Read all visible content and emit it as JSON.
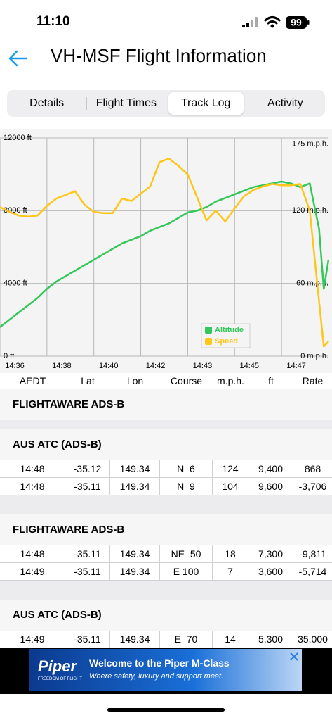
{
  "status_bar": {
    "time": "11:10",
    "battery": "99"
  },
  "header": {
    "title": "VH-MSF Flight Information"
  },
  "tabs": [
    "Details",
    "Flight Times",
    "Track Log",
    "Activity"
  ],
  "selected_tab": 2,
  "chart_data": {
    "type": "line",
    "x": [
      0,
      2,
      4,
      6,
      8,
      10,
      12,
      14,
      16,
      18,
      20,
      22,
      24,
      26,
      28,
      30,
      32,
      34,
      36,
      38,
      40,
      42,
      44,
      46,
      48,
      50,
      52,
      54,
      56,
      58,
      60,
      62,
      64,
      66,
      68,
      69,
      70
    ],
    "xlim": [
      0,
      70
    ],
    "xticks": [
      {
        "value": 0,
        "label": "14:36"
      },
      {
        "value": 10,
        "label": "14:38"
      },
      {
        "value": 20,
        "label": "14:40"
      },
      {
        "value": 30,
        "label": "14:42"
      },
      {
        "value": 40,
        "label": "14:43"
      },
      {
        "value": 50,
        "label": "14:45"
      },
      {
        "value": 60,
        "label": "14:47"
      }
    ],
    "ylim": [
      0,
      12000
    ],
    "yticks": [
      {
        "value": 0,
        "label": "0 ft"
      },
      {
        "value": 4000,
        "label": "4000 ft"
      },
      {
        "value": 8000,
        "label": "8000 ft"
      },
      {
        "value": 12000,
        "label": "12000 ft"
      }
    ],
    "y2lim": [
      0,
      180
    ],
    "y2ticks": [
      {
        "value": 0,
        "label": "0 m.p.h."
      },
      {
        "value": 60,
        "label": "60 m.p.h."
      },
      {
        "value": 120,
        "label": "120 m.p.h."
      },
      {
        "value": 175,
        "label": "175 m.p.h."
      }
    ],
    "grid": true,
    "legend": "bottom-right",
    "series": [
      {
        "name": "Altitude",
        "color": "#34c759",
        "values": [
          1600,
          2000,
          2400,
          2800,
          3200,
          3700,
          4100,
          4400,
          4700,
          5000,
          5300,
          5600,
          5900,
          6200,
          6400,
          6600,
          6900,
          7100,
          7300,
          7600,
          7900,
          8000,
          8200,
          8500,
          8700,
          8900,
          9100,
          9300,
          9400,
          9500,
          9600,
          9500,
          9300,
          9500,
          7000,
          3700,
          5300
        ]
      },
      {
        "name": "Speed",
        "color": "#ffc61a",
        "axis": "y2",
        "values": [
          123,
          119,
          116,
          115,
          116,
          124,
          130,
          133,
          136,
          125,
          119,
          118,
          118,
          130,
          128,
          134,
          140,
          160,
          163,
          157,
          150,
          131,
          112,
          120,
          111,
          122,
          132,
          137,
          140,
          142,
          141,
          141,
          142,
          120,
          45,
          8,
          12
        ]
      }
    ]
  },
  "table": {
    "columns": [
      "AEDT",
      "Lat",
      "Lon",
      "Course",
      "m.p.h.",
      "ft",
      "Rate"
    ],
    "sections": [
      {
        "title": "FLIGHTAWARE ADS-B",
        "rows": []
      },
      {
        "title": "AUS ATC (ADS-B)",
        "rows": [
          [
            "14:48",
            "-35.12",
            "149.34",
            "N  6",
            "124",
            "9,400",
            "868"
          ],
          [
            "14:48",
            "-35.11",
            "149.34",
            "N  9",
            "104",
            "9,600",
            "-3,706"
          ]
        ]
      },
      {
        "title": "FLIGHTAWARE ADS-B",
        "rows": [
          [
            "14:48",
            "-35.11",
            "149.34",
            "NE  50",
            "18",
            "7,300",
            "-9,811"
          ],
          [
            "14:49",
            "-35.11",
            "149.34",
            "E 100",
            "7",
            "3,600",
            "-5,714"
          ]
        ]
      },
      {
        "title": "AUS ATC (ADS-B)",
        "rows": [
          [
            "14:49",
            "-35.11",
            "149.34",
            "E  70",
            "14",
            "5,300",
            "35,000"
          ]
        ]
      }
    ]
  },
  "ad": {
    "brand": "Piper",
    "tagline": "FREEDOM OF FLIGHT",
    "headline": "Welcome to the Piper M-Class",
    "text": "Where safety, luxury and support meet."
  }
}
